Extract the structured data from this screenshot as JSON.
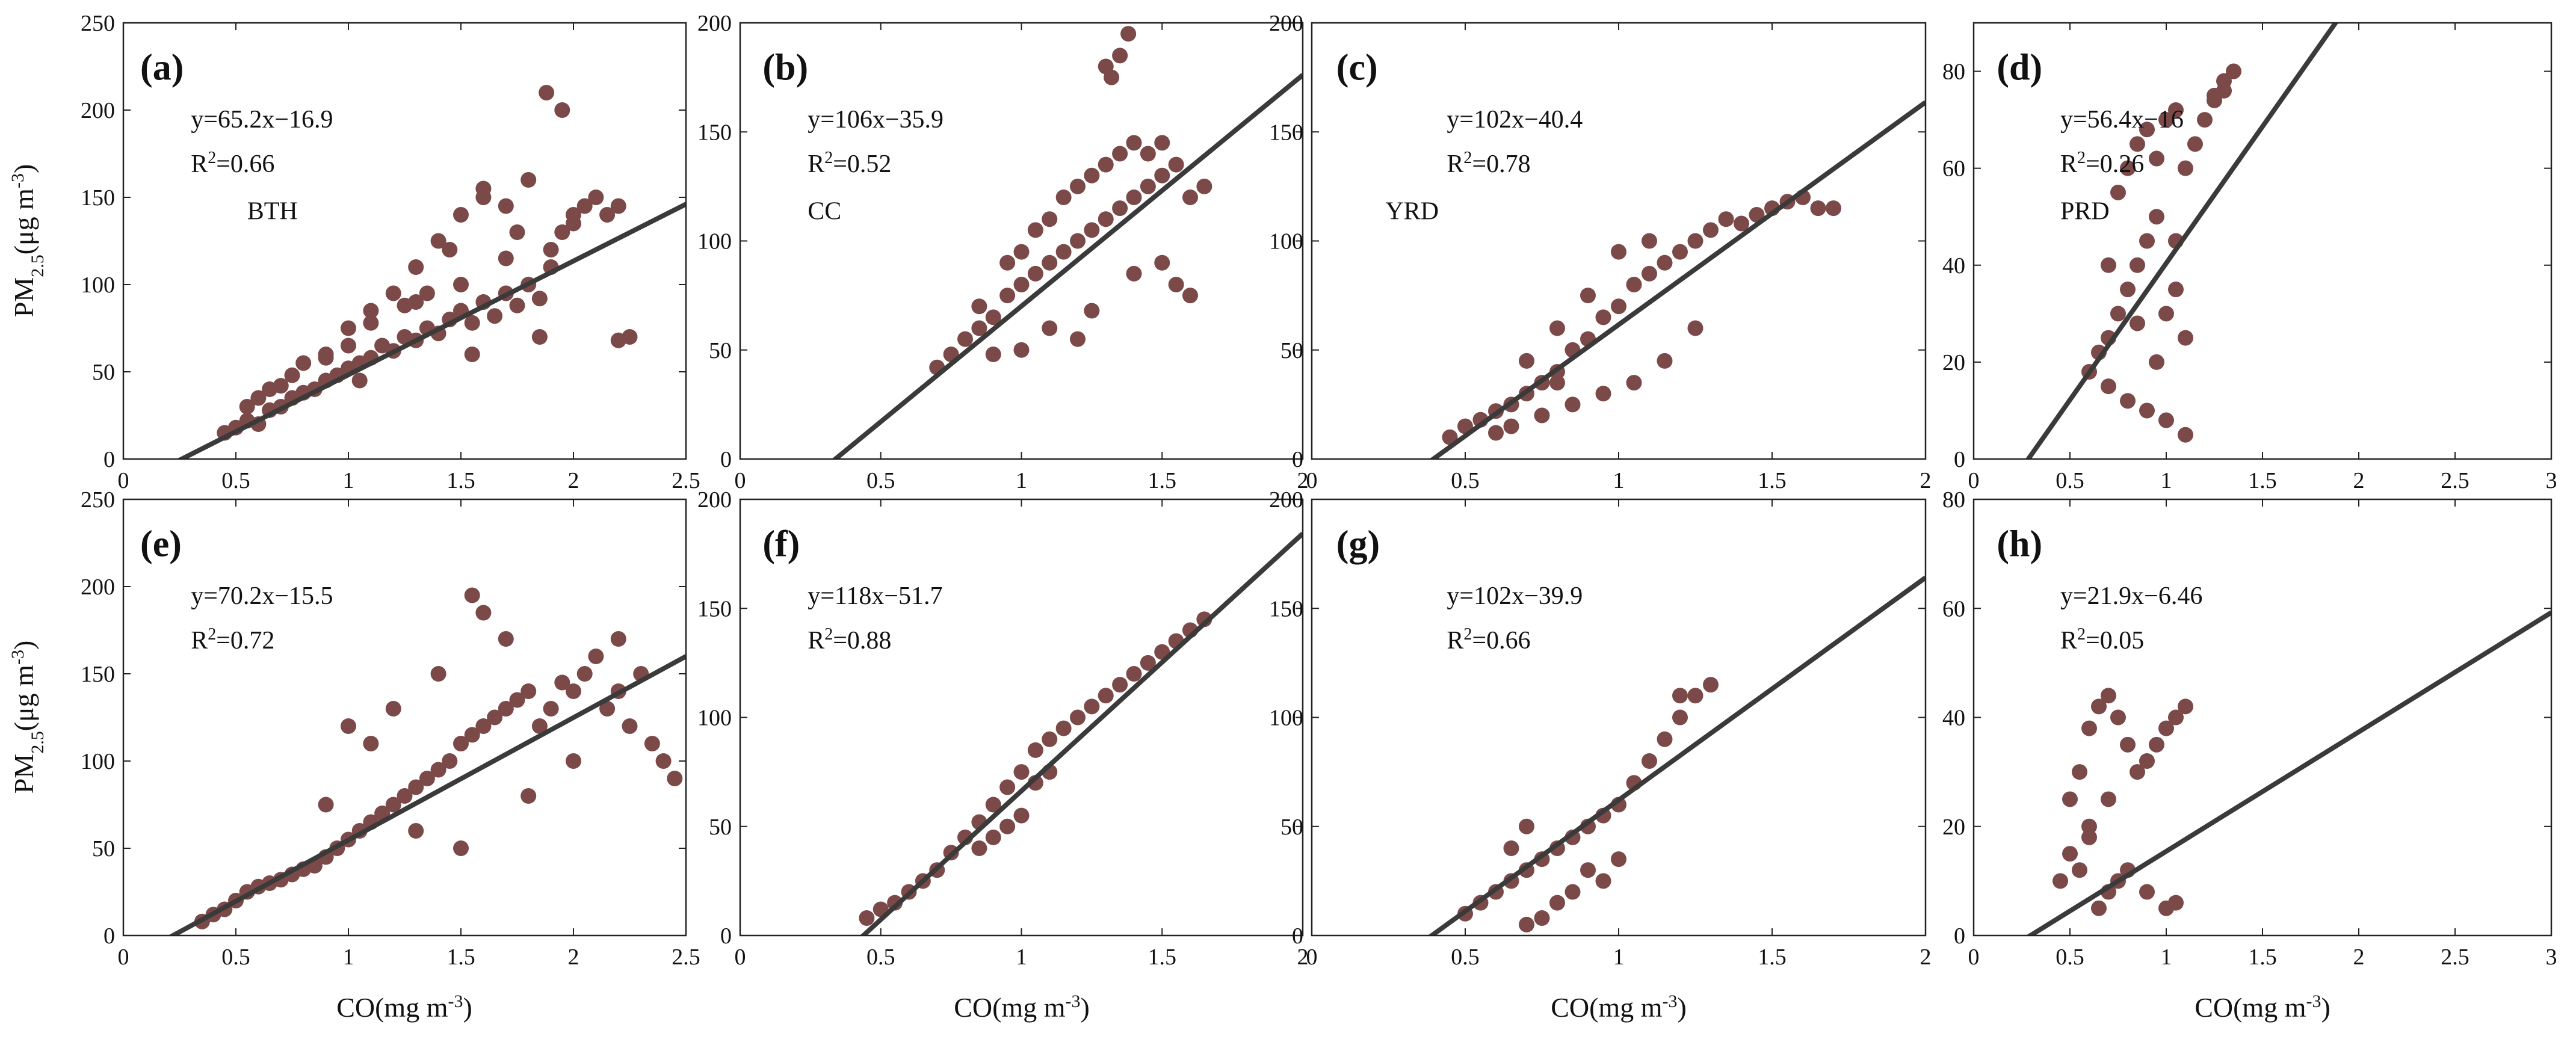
{
  "figure": {
    "ylabel_prefix": "PM",
    "ylabel_sub": "2.5",
    "ylabel_rest": "(μg m",
    "ylabel_sup": "-3",
    "ylabel_close": ")",
    "xlabel_prefix": "CO(mg m",
    "xlabel_sup": "-3",
    "xlabel_close": ")",
    "point_color": "#7b4a48",
    "line_color": "#3a3a3a"
  },
  "chart_data": [
    {
      "type": "scatter",
      "panel": "(a)",
      "region": "BTH",
      "equation": "y=65.2x−16.9",
      "r2_label": "R",
      "r2_value": "=0.66",
      "slope": 65.2,
      "intercept": -16.9,
      "r2": 0.66,
      "xlim": [
        0,
        2.5
      ],
      "ylim": [
        0,
        250
      ],
      "xticks": [
        0,
        0.5,
        1,
        1.5,
        2,
        2.5
      ],
      "xtick_labels": [
        "0",
        "0.5",
        "1",
        "1.5",
        "2",
        "2.5"
      ],
      "yticks": [
        0,
        50,
        100,
        150,
        200,
        250
      ],
      "ytick_labels": [
        "0",
        "50",
        "100",
        "150",
        "200",
        "250"
      ],
      "x": [
        0.45,
        0.5,
        0.55,
        0.6,
        0.6,
        0.65,
        0.7,
        0.7,
        0.75,
        0.8,
        0.8,
        0.85,
        0.9,
        0.9,
        0.95,
        1.0,
        1.0,
        1.05,
        1.1,
        1.1,
        1.15,
        1.2,
        1.2,
        1.25,
        1.3,
        1.3,
        1.35,
        1.4,
        1.4,
        1.45,
        1.5,
        1.5,
        1.55,
        1.6,
        1.6,
        1.65,
        1.7,
        1.7,
        1.75,
        1.8,
        1.8,
        1.85,
        1.9,
        1.9,
        1.95,
        2.0,
        2.05,
        2.1,
        2.15,
        2.2,
        2.25,
        1.88,
        1.95,
        1.6,
        1.75,
        2.2,
        1.45,
        1.3,
        1.1,
        1.0,
        0.9,
        1.5,
        1.7,
        1.55,
        1.35,
        1.25,
        0.75,
        0.65,
        0.55,
        1.05,
        1.85,
        2.0
      ],
      "y": [
        15,
        18,
        22,
        20,
        35,
        28,
        30,
        42,
        35,
        38,
        55,
        40,
        45,
        60,
        48,
        52,
        75,
        55,
        58,
        85,
        65,
        62,
        95,
        70,
        68,
        110,
        75,
        72,
        125,
        80,
        85,
        140,
        78,
        90,
        150,
        82,
        95,
        145,
        88,
        100,
        160,
        92,
        110,
        120,
        130,
        140,
        145,
        150,
        140,
        145,
        70,
        210,
        200,
        155,
        130,
        68,
        120,
        90,
        78,
        65,
        58,
        100,
        115,
        60,
        95,
        88,
        48,
        40,
        30,
        45,
        70,
        135
      ]
    },
    {
      "type": "scatter",
      "panel": "(b)",
      "region": "CC",
      "equation": "y=106x−35.9",
      "r2_label": "R",
      "r2_value": "=0.52",
      "slope": 106,
      "intercept": -35.9,
      "r2": 0.52,
      "xlim": [
        0,
        2
      ],
      "ylim": [
        0,
        200
      ],
      "xticks": [
        0,
        0.5,
        1,
        1.5,
        2
      ],
      "xtick_labels": [
        "0",
        "0.5",
        "1",
        "1.5",
        "2"
      ],
      "yticks": [
        0,
        50,
        100,
        150,
        200
      ],
      "ytick_labels": [
        "0",
        "50",
        "100",
        "150",
        "200"
      ],
      "x": [
        0.7,
        0.75,
        0.8,
        0.85,
        0.85,
        0.9,
        0.95,
        0.95,
        1.0,
        1.0,
        1.05,
        1.05,
        1.1,
        1.1,
        1.15,
        1.15,
        1.2,
        1.2,
        1.25,
        1.25,
        1.3,
        1.3,
        1.35,
        1.35,
        1.4,
        1.4,
        1.45,
        1.45,
        1.5,
        1.5,
        1.55,
        1.6,
        1.65,
        1.3,
        1.35,
        1.38,
        1.32,
        1.55,
        1.6,
        1.5,
        1.1,
        1.2,
        1.0,
        0.9,
        1.25,
        1.4
      ],
      "y": [
        42,
        48,
        55,
        60,
        70,
        65,
        75,
        90,
        80,
        95,
        85,
        105,
        90,
        110,
        95,
        120,
        100,
        125,
        105,
        130,
        110,
        135,
        115,
        140,
        120,
        145,
        125,
        140,
        130,
        145,
        135,
        120,
        125,
        180,
        185,
        195,
        175,
        80,
        75,
        90,
        60,
        55,
        50,
        48,
        68,
        85
      ]
    },
    {
      "type": "scatter",
      "panel": "(c)",
      "region": "YRD",
      "equation": "y=102x−40.4",
      "r2_label": "R",
      "r2_value": "=0.78",
      "slope": 102,
      "intercept": -40.4,
      "r2": 0.78,
      "xlim": [
        0,
        2
      ],
      "ylim": [
        0,
        200
      ],
      "xticks": [
        0,
        0.5,
        1,
        1.5,
        2
      ],
      "xtick_labels": [
        "0",
        "0.5",
        "1",
        "1.5",
        "2"
      ],
      "yticks": [
        0,
        50,
        100,
        150,
        200
      ],
      "ytick_labels": [
        "0",
        "50",
        "100",
        "150",
        "200"
      ],
      "x": [
        0.45,
        0.5,
        0.55,
        0.6,
        0.65,
        0.7,
        0.7,
        0.75,
        0.8,
        0.8,
        0.85,
        0.9,
        0.9,
        0.95,
        1.0,
        1.0,
        1.05,
        1.1,
        1.1,
        1.15,
        1.2,
        1.25,
        1.3,
        1.35,
        1.4,
        1.45,
        1.5,
        1.55,
        1.6,
        1.65,
        1.7,
        0.75,
        0.85,
        0.95,
        1.05,
        1.15,
        1.25,
        0.6,
        0.65,
        0.8
      ],
      "y": [
        10,
        15,
        18,
        22,
        25,
        30,
        45,
        35,
        40,
        60,
        50,
        55,
        75,
        65,
        70,
        95,
        80,
        85,
        100,
        90,
        95,
        100,
        105,
        110,
        108,
        112,
        115,
        118,
        120,
        115,
        115,
        20,
        25,
        30,
        35,
        45,
        60,
        12,
        15,
        35
      ]
    },
    {
      "type": "scatter",
      "panel": "(d)",
      "region": "PRD",
      "equation": "y=56.4x−16",
      "r2_label": "R",
      "r2_value": "=0.26",
      "slope": 56.4,
      "intercept": -16,
      "r2": 0.26,
      "xlim": [
        0,
        3
      ],
      "ylim": [
        0,
        90
      ],
      "xticks": [
        0,
        0.5,
        1,
        1.5,
        2,
        2.5,
        3
      ],
      "xtick_labels": [
        "0",
        "0.5",
        "1",
        "1.5",
        "2",
        "2.5",
        "3"
      ],
      "yticks": [
        0,
        20,
        40,
        60,
        80
      ],
      "ytick_labels": [
        "0",
        "20",
        "40",
        "60",
        "80"
      ],
      "x": [
        0.6,
        0.65,
        0.7,
        0.7,
        0.75,
        0.75,
        0.8,
        0.8,
        0.85,
        0.85,
        0.9,
        0.9,
        0.95,
        0.95,
        1.0,
        1.0,
        1.05,
        1.05,
        1.1,
        1.1,
        1.15,
        1.2,
        1.25,
        1.3,
        1.35,
        1.3,
        1.25,
        0.9,
        1.0,
        0.8,
        0.7,
        1.05,
        0.95,
        0.85,
        1.1
      ],
      "y": [
        18,
        22,
        25,
        40,
        30,
        55,
        35,
        60,
        40,
        65,
        45,
        68,
        50,
        62,
        30,
        70,
        35,
        72,
        25,
        60,
        65,
        70,
        75,
        78,
        80,
        76,
        74,
        10,
        8,
        12,
        15,
        45,
        20,
        28,
        5
      ]
    },
    {
      "type": "scatter",
      "panel": "(e)",
      "region": "",
      "equation": "y=70.2x−15.5",
      "r2_label": "R",
      "r2_value": "=0.72",
      "slope": 70.2,
      "intercept": -15.5,
      "r2": 0.72,
      "xlim": [
        0,
        2.5
      ],
      "ylim": [
        0,
        250
      ],
      "xticks": [
        0,
        0.5,
        1,
        1.5,
        2,
        2.5
      ],
      "xtick_labels": [
        "0",
        "0.5",
        "1",
        "1.5",
        "2",
        "2.5"
      ],
      "yticks": [
        0,
        50,
        100,
        150,
        200,
        250
      ],
      "ytick_labels": [
        "0",
        "50",
        "100",
        "150",
        "200",
        "250"
      ],
      "x": [
        0.35,
        0.4,
        0.45,
        0.5,
        0.55,
        0.6,
        0.65,
        0.7,
        0.75,
        0.8,
        0.85,
        0.9,
        0.95,
        1.0,
        1.05,
        1.1,
        1.15,
        1.2,
        1.25,
        1.3,
        1.35,
        1.4,
        1.45,
        1.5,
        1.55,
        1.6,
        1.65,
        1.7,
        1.75,
        1.8,
        1.85,
        1.9,
        1.95,
        2.0,
        2.05,
        2.1,
        2.15,
        2.2,
        2.25,
        2.3,
        2.35,
        2.4,
        2.45,
        1.55,
        1.6,
        1.7,
        1.4,
        1.2,
        1.0,
        1.3,
        1.5,
        1.8,
        2.0,
        2.2,
        0.9,
        1.1
      ],
      "y": [
        8,
        12,
        15,
        20,
        25,
        28,
        30,
        32,
        35,
        38,
        40,
        45,
        50,
        55,
        60,
        65,
        70,
        75,
        80,
        85,
        90,
        95,
        100,
        110,
        115,
        120,
        125,
        130,
        135,
        140,
        120,
        130,
        145,
        140,
        150,
        160,
        130,
        140,
        120,
        150,
        110,
        100,
        90,
        195,
        185,
        170,
        150,
        130,
        120,
        60,
        50,
        80,
        100,
        170,
        75,
        110
      ]
    },
    {
      "type": "scatter",
      "panel": "(f)",
      "region": "",
      "equation": "y=118x−51.7",
      "r2_label": "R",
      "r2_value": "=0.88",
      "slope": 118,
      "intercept": -51.7,
      "r2": 0.88,
      "xlim": [
        0,
        2
      ],
      "ylim": [
        0,
        200
      ],
      "xticks": [
        0,
        0.5,
        1,
        1.5,
        2
      ],
      "xtick_labels": [
        "0",
        "0.5",
        "1",
        "1.5",
        "2"
      ],
      "yticks": [
        0,
        50,
        100,
        150,
        200
      ],
      "ytick_labels": [
        "0",
        "50",
        "100",
        "150",
        "200"
      ],
      "x": [
        0.45,
        0.5,
        0.55,
        0.6,
        0.65,
        0.7,
        0.75,
        0.8,
        0.85,
        0.9,
        0.95,
        1.0,
        1.05,
        1.1,
        1.15,
        1.2,
        1.25,
        1.3,
        1.35,
        1.4,
        1.45,
        1.5,
        1.55,
        1.6,
        1.65,
        0.85,
        0.9,
        0.95,
        1.0,
        1.05,
        1.1
      ],
      "y": [
        8,
        12,
        15,
        20,
        25,
        30,
        38,
        45,
        52,
        60,
        68,
        75,
        85,
        90,
        95,
        100,
        105,
        110,
        115,
        120,
        125,
        130,
        135,
        140,
        145,
        40,
        45,
        50,
        55,
        70,
        75
      ]
    },
    {
      "type": "scatter",
      "panel": "(g)",
      "region": "",
      "equation": "y=102x−39.9",
      "r2_label": "R",
      "r2_value": "=0.66",
      "slope": 102,
      "intercept": -39.9,
      "r2": 0.66,
      "xlim": [
        0,
        2
      ],
      "ylim": [
        0,
        200
      ],
      "xticks": [
        0,
        0.5,
        1,
        1.5,
        2
      ],
      "xtick_labels": [
        "0",
        "0.5",
        "1",
        "1.5",
        "2"
      ],
      "yticks": [
        0,
        50,
        100,
        150,
        200
      ],
      "ytick_labels": [
        "0",
        "50",
        "100",
        "150",
        "200"
      ],
      "x": [
        0.5,
        0.55,
        0.6,
        0.65,
        0.7,
        0.75,
        0.8,
        0.85,
        0.9,
        0.95,
        1.0,
        1.05,
        1.1,
        1.15,
        1.2,
        1.25,
        1.3,
        0.7,
        0.75,
        0.8,
        0.85,
        0.9,
        0.65,
        0.7,
        0.95,
        1.0,
        1.2
      ],
      "y": [
        10,
        15,
        20,
        25,
        30,
        35,
        40,
        45,
        50,
        55,
        60,
        70,
        80,
        90,
        100,
        110,
        115,
        5,
        8,
        15,
        20,
        30,
        40,
        50,
        25,
        35,
        110
      ]
    },
    {
      "type": "scatter",
      "panel": "(h)",
      "region": "",
      "equation": "y=21.9x−6.46",
      "r2_label": "R",
      "r2_value": "=0.05",
      "slope": 21.9,
      "intercept": -6.46,
      "r2": 0.05,
      "xlim": [
        0,
        3
      ],
      "ylim": [
        0,
        80
      ],
      "xticks": [
        0,
        0.5,
        1,
        1.5,
        2,
        2.5,
        3
      ],
      "xtick_labels": [
        "0",
        "0.5",
        "1",
        "1.5",
        "2",
        "2.5",
        "3"
      ],
      "yticks": [
        0,
        20,
        40,
        60,
        80
      ],
      "ytick_labels": [
        "0",
        "20",
        "40",
        "60",
        "80"
      ],
      "x": [
        0.45,
        0.5,
        0.5,
        0.55,
        0.55,
        0.6,
        0.6,
        0.65,
        0.65,
        0.7,
        0.7,
        0.75,
        0.75,
        0.8,
        0.8,
        0.85,
        0.9,
        0.95,
        1.0,
        1.05,
        1.1,
        0.9,
        1.0,
        1.05,
        0.6,
        0.7
      ],
      "y": [
        10,
        15,
        25,
        12,
        30,
        18,
        38,
        5,
        42,
        8,
        44,
        10,
        40,
        12,
        35,
        30,
        32,
        35,
        38,
        40,
        42,
        8,
        5,
        6,
        20,
        25
      ]
    }
  ]
}
